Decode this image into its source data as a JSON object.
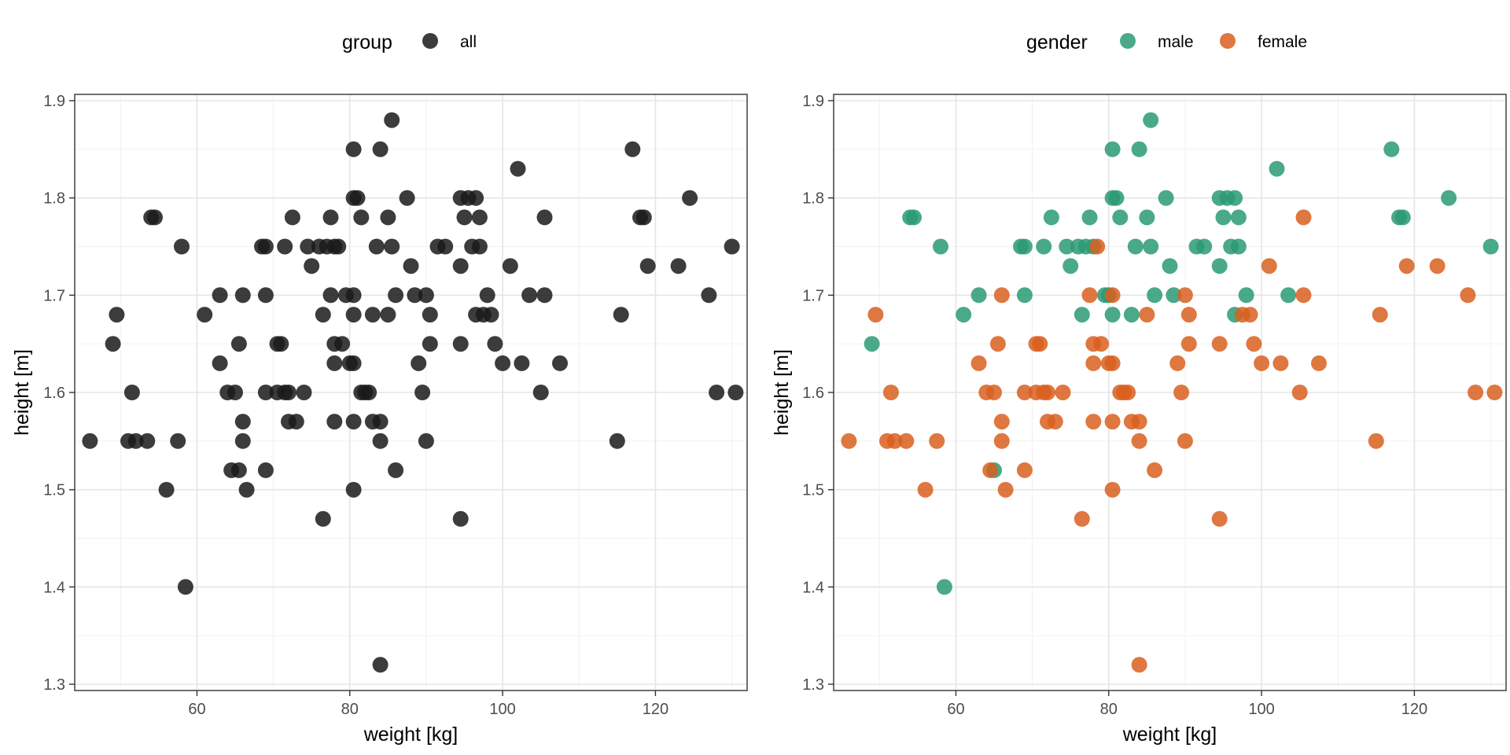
{
  "chart_data": [
    {
      "type": "scatter",
      "title": "",
      "xlabel": "weight [kg]",
      "ylabel": "height [m]",
      "xlim": [
        44,
        132
      ],
      "ylim": [
        1.3,
        1.9
      ],
      "xticks": [
        60,
        80,
        100,
        120
      ],
      "xtick_labels": [
        "60",
        "80",
        "100",
        "120"
      ],
      "yticks": [
        1.3,
        1.4,
        1.5,
        1.6,
        1.7,
        1.8,
        1.9
      ],
      "ytick_labels": [
        "1.3",
        "1.4",
        "1.5",
        "1.6",
        "1.7",
        "1.8",
        "1.9"
      ],
      "grid": true,
      "legend": {
        "title": "group",
        "position": "top"
      },
      "series": [
        {
          "name": "all",
          "color": "#1a1a1a",
          "points": [
            [
              46,
              1.55
            ],
            [
              49,
              1.65
            ],
            [
              49.5,
              1.68
            ],
            [
              51,
              1.55
            ],
            [
              51.5,
              1.6
            ],
            [
              52,
              1.55
            ],
            [
              53.5,
              1.55
            ],
            [
              54,
              1.78
            ],
            [
              54.5,
              1.78
            ],
            [
              56,
              1.5
            ],
            [
              57.5,
              1.55
            ],
            [
              58,
              1.75
            ],
            [
              58.5,
              1.4
            ],
            [
              61,
              1.68
            ],
            [
              63,
              1.63
            ],
            [
              63,
              1.7
            ],
            [
              64,
              1.6
            ],
            [
              64.5,
              1.52
            ],
            [
              65,
              1.6
            ],
            [
              65.5,
              1.52
            ],
            [
              65.5,
              1.65
            ],
            [
              66,
              1.7
            ],
            [
              66,
              1.57
            ],
            [
              66,
              1.55
            ],
            [
              66.5,
              1.5
            ],
            [
              68.5,
              1.75
            ],
            [
              69,
              1.52
            ],
            [
              69,
              1.75
            ],
            [
              69,
              1.6
            ],
            [
              69,
              1.7
            ],
            [
              70.5,
              1.65
            ],
            [
              70.5,
              1.6
            ],
            [
              71,
              1.65
            ],
            [
              71.5,
              1.6
            ],
            [
              71.5,
              1.75
            ],
            [
              72,
              1.57
            ],
            [
              72,
              1.6
            ],
            [
              72.5,
              1.78
            ],
            [
              73,
              1.57
            ],
            [
              74,
              1.6
            ],
            [
              74.5,
              1.75
            ],
            [
              75,
              1.73
            ],
            [
              76,
              1.75
            ],
            [
              76.5,
              1.68
            ],
            [
              76.5,
              1.47
            ],
            [
              77,
              1.75
            ],
            [
              77.5,
              1.7
            ],
            [
              77.5,
              1.78
            ],
            [
              78,
              1.75
            ],
            [
              78,
              1.63
            ],
            [
              78,
              1.57
            ],
            [
              78,
              1.65
            ],
            [
              78.5,
              1.75
            ],
            [
              79,
              1.65
            ],
            [
              79.5,
              1.7
            ],
            [
              80,
              1.63
            ],
            [
              80.5,
              1.57
            ],
            [
              80.5,
              1.5
            ],
            [
              80.5,
              1.68
            ],
            [
              80.5,
              1.7
            ],
            [
              80.5,
              1.63
            ],
            [
              80.5,
              1.85
            ],
            [
              80.5,
              1.8
            ],
            [
              81,
              1.8
            ],
            [
              81.5,
              1.6
            ],
            [
              81.5,
              1.78
            ],
            [
              82,
              1.6
            ],
            [
              82.5,
              1.6
            ],
            [
              83,
              1.68
            ],
            [
              83,
              1.57
            ],
            [
              83.5,
              1.75
            ],
            [
              84,
              1.57
            ],
            [
              84,
              1.55
            ],
            [
              84,
              1.85
            ],
            [
              84,
              1.32
            ],
            [
              85,
              1.68
            ],
            [
              85,
              1.78
            ],
            [
              85.5,
              1.75
            ],
            [
              85.5,
              1.88
            ],
            [
              86,
              1.52
            ],
            [
              86,
              1.7
            ],
            [
              87.5,
              1.8
            ],
            [
              88,
              1.73
            ],
            [
              88.5,
              1.7
            ],
            [
              89,
              1.63
            ],
            [
              89.5,
              1.6
            ],
            [
              90,
              1.55
            ],
            [
              90,
              1.7
            ],
            [
              90.5,
              1.65
            ],
            [
              90.5,
              1.68
            ],
            [
              91.5,
              1.75
            ],
            [
              92.5,
              1.75
            ],
            [
              94.5,
              1.73
            ],
            [
              94.5,
              1.65
            ],
            [
              94.5,
              1.47
            ],
            [
              94.5,
              1.8
            ],
            [
              95,
              1.78
            ],
            [
              95.5,
              1.8
            ],
            [
              96,
              1.75
            ],
            [
              96.5,
              1.8
            ],
            [
              96.5,
              1.68
            ],
            [
              97,
              1.78
            ],
            [
              97,
              1.75
            ],
            [
              97.5,
              1.68
            ],
            [
              98,
              1.7
            ],
            [
              98.5,
              1.68
            ],
            [
              99,
              1.65
            ],
            [
              100,
              1.63
            ],
            [
              101,
              1.73
            ],
            [
              102,
              1.83
            ],
            [
              102.5,
              1.63
            ],
            [
              103.5,
              1.7
            ],
            [
              105,
              1.6
            ],
            [
              105.5,
              1.78
            ],
            [
              105.5,
              1.7
            ],
            [
              107.5,
              1.63
            ],
            [
              115,
              1.55
            ],
            [
              115.5,
              1.68
            ],
            [
              117,
              1.85
            ],
            [
              118,
              1.78
            ],
            [
              118.5,
              1.78
            ],
            [
              119,
              1.73
            ],
            [
              123,
              1.73
            ],
            [
              124.5,
              1.8
            ],
            [
              127,
              1.7
            ],
            [
              128,
              1.6
            ],
            [
              130,
              1.75
            ],
            [
              130.5,
              1.6
            ]
          ]
        }
      ]
    },
    {
      "type": "scatter",
      "title": "",
      "xlabel": "weight [kg]",
      "ylabel": "height [m]",
      "xlim": [
        44,
        132
      ],
      "ylim": [
        1.3,
        1.9
      ],
      "xticks": [
        60,
        80,
        100,
        120
      ],
      "xtick_labels": [
        "60",
        "80",
        "100",
        "120"
      ],
      "yticks": [
        1.3,
        1.4,
        1.5,
        1.6,
        1.7,
        1.8,
        1.9
      ],
      "ytick_labels": [
        "1.3",
        "1.4",
        "1.5",
        "1.6",
        "1.7",
        "1.8",
        "1.9"
      ],
      "grid": true,
      "legend": {
        "title": "gender",
        "position": "top"
      },
      "series": [
        {
          "name": "male",
          "color": "#2a9a74",
          "points": [
            [
              49,
              1.65
            ],
            [
              54,
              1.78
            ],
            [
              54.5,
              1.78
            ],
            [
              58,
              1.75
            ],
            [
              58.5,
              1.4
            ],
            [
              61,
              1.68
            ],
            [
              63,
              1.7
            ],
            [
              65,
              1.52
            ],
            [
              68.5,
              1.75
            ],
            [
              69,
              1.75
            ],
            [
              69,
              1.7
            ],
            [
              71.5,
              1.75
            ],
            [
              72.5,
              1.78
            ],
            [
              74.5,
              1.75
            ],
            [
              75,
              1.73
            ],
            [
              76,
              1.75
            ],
            [
              76.5,
              1.68
            ],
            [
              77,
              1.75
            ],
            [
              77.5,
              1.78
            ],
            [
              78,
              1.75
            ],
            [
              79.5,
              1.7
            ],
            [
              80,
              1.7
            ],
            [
              80.5,
              1.68
            ],
            [
              80.5,
              1.85
            ],
            [
              80.5,
              1.8
            ],
            [
              81,
              1.8
            ],
            [
              81.5,
              1.78
            ],
            [
              83,
              1.68
            ],
            [
              83.5,
              1.75
            ],
            [
              84,
              1.85
            ],
            [
              85,
              1.78
            ],
            [
              85.5,
              1.75
            ],
            [
              85.5,
              1.88
            ],
            [
              86,
              1.7
            ],
            [
              87.5,
              1.8
            ],
            [
              88,
              1.73
            ],
            [
              88.5,
              1.7
            ],
            [
              91.5,
              1.75
            ],
            [
              92.5,
              1.75
            ],
            [
              94.5,
              1.73
            ],
            [
              94.5,
              1.8
            ],
            [
              95,
              1.78
            ],
            [
              95.5,
              1.8
            ],
            [
              96,
              1.75
            ],
            [
              96.5,
              1.8
            ],
            [
              96.5,
              1.68
            ],
            [
              97,
              1.78
            ],
            [
              97,
              1.75
            ],
            [
              98,
              1.7
            ],
            [
              102,
              1.83
            ],
            [
              103.5,
              1.7
            ],
            [
              117,
              1.85
            ],
            [
              118,
              1.78
            ],
            [
              118.5,
              1.78
            ],
            [
              124.5,
              1.8
            ],
            [
              130,
              1.75
            ]
          ]
        },
        {
          "name": "female",
          "color": "#d95f20",
          "points": [
            [
              46,
              1.55
            ],
            [
              49.5,
              1.68
            ],
            [
              51,
              1.55
            ],
            [
              51.5,
              1.6
            ],
            [
              52,
              1.55
            ],
            [
              53.5,
              1.55
            ],
            [
              56,
              1.5
            ],
            [
              57.5,
              1.55
            ],
            [
              63,
              1.63
            ],
            [
              64,
              1.6
            ],
            [
              64.5,
              1.52
            ],
            [
              65,
              1.6
            ],
            [
              65.5,
              1.65
            ],
            [
              66,
              1.7
            ],
            [
              66,
              1.57
            ],
            [
              66,
              1.55
            ],
            [
              66.5,
              1.5
            ],
            [
              69,
              1.52
            ],
            [
              69,
              1.6
            ],
            [
              70.5,
              1.65
            ],
            [
              70.5,
              1.6
            ],
            [
              71,
              1.65
            ],
            [
              71.5,
              1.6
            ],
            [
              72,
              1.57
            ],
            [
              72,
              1.6
            ],
            [
              73,
              1.57
            ],
            [
              74,
              1.6
            ],
            [
              76.5,
              1.47
            ],
            [
              77.5,
              1.7
            ],
            [
              78,
              1.63
            ],
            [
              78,
              1.57
            ],
            [
              78,
              1.65
            ],
            [
              78.5,
              1.75
            ],
            [
              79,
              1.65
            ],
            [
              80,
              1.63
            ],
            [
              80.5,
              1.57
            ],
            [
              80.5,
              1.5
            ],
            [
              80.5,
              1.7
            ],
            [
              80.5,
              1.63
            ],
            [
              81.5,
              1.6
            ],
            [
              82,
              1.6
            ],
            [
              82.5,
              1.6
            ],
            [
              83,
              1.57
            ],
            [
              84,
              1.57
            ],
            [
              84,
              1.55
            ],
            [
              84,
              1.32
            ],
            [
              85,
              1.68
            ],
            [
              86,
              1.52
            ],
            [
              89,
              1.63
            ],
            [
              89.5,
              1.6
            ],
            [
              90,
              1.55
            ],
            [
              90,
              1.7
            ],
            [
              90.5,
              1.65
            ],
            [
              90.5,
              1.68
            ],
            [
              94.5,
              1.65
            ],
            [
              94.5,
              1.47
            ],
            [
              97.5,
              1.68
            ],
            [
              98.5,
              1.68
            ],
            [
              99,
              1.65
            ],
            [
              100,
              1.63
            ],
            [
              101,
              1.73
            ],
            [
              102.5,
              1.63
            ],
            [
              105,
              1.6
            ],
            [
              105.5,
              1.78
            ],
            [
              105.5,
              1.7
            ],
            [
              107.5,
              1.63
            ],
            [
              115,
              1.55
            ],
            [
              115.5,
              1.68
            ],
            [
              119,
              1.73
            ],
            [
              123,
              1.73
            ],
            [
              127,
              1.7
            ],
            [
              128,
              1.6
            ],
            [
              130.5,
              1.6
            ]
          ]
        }
      ]
    }
  ]
}
